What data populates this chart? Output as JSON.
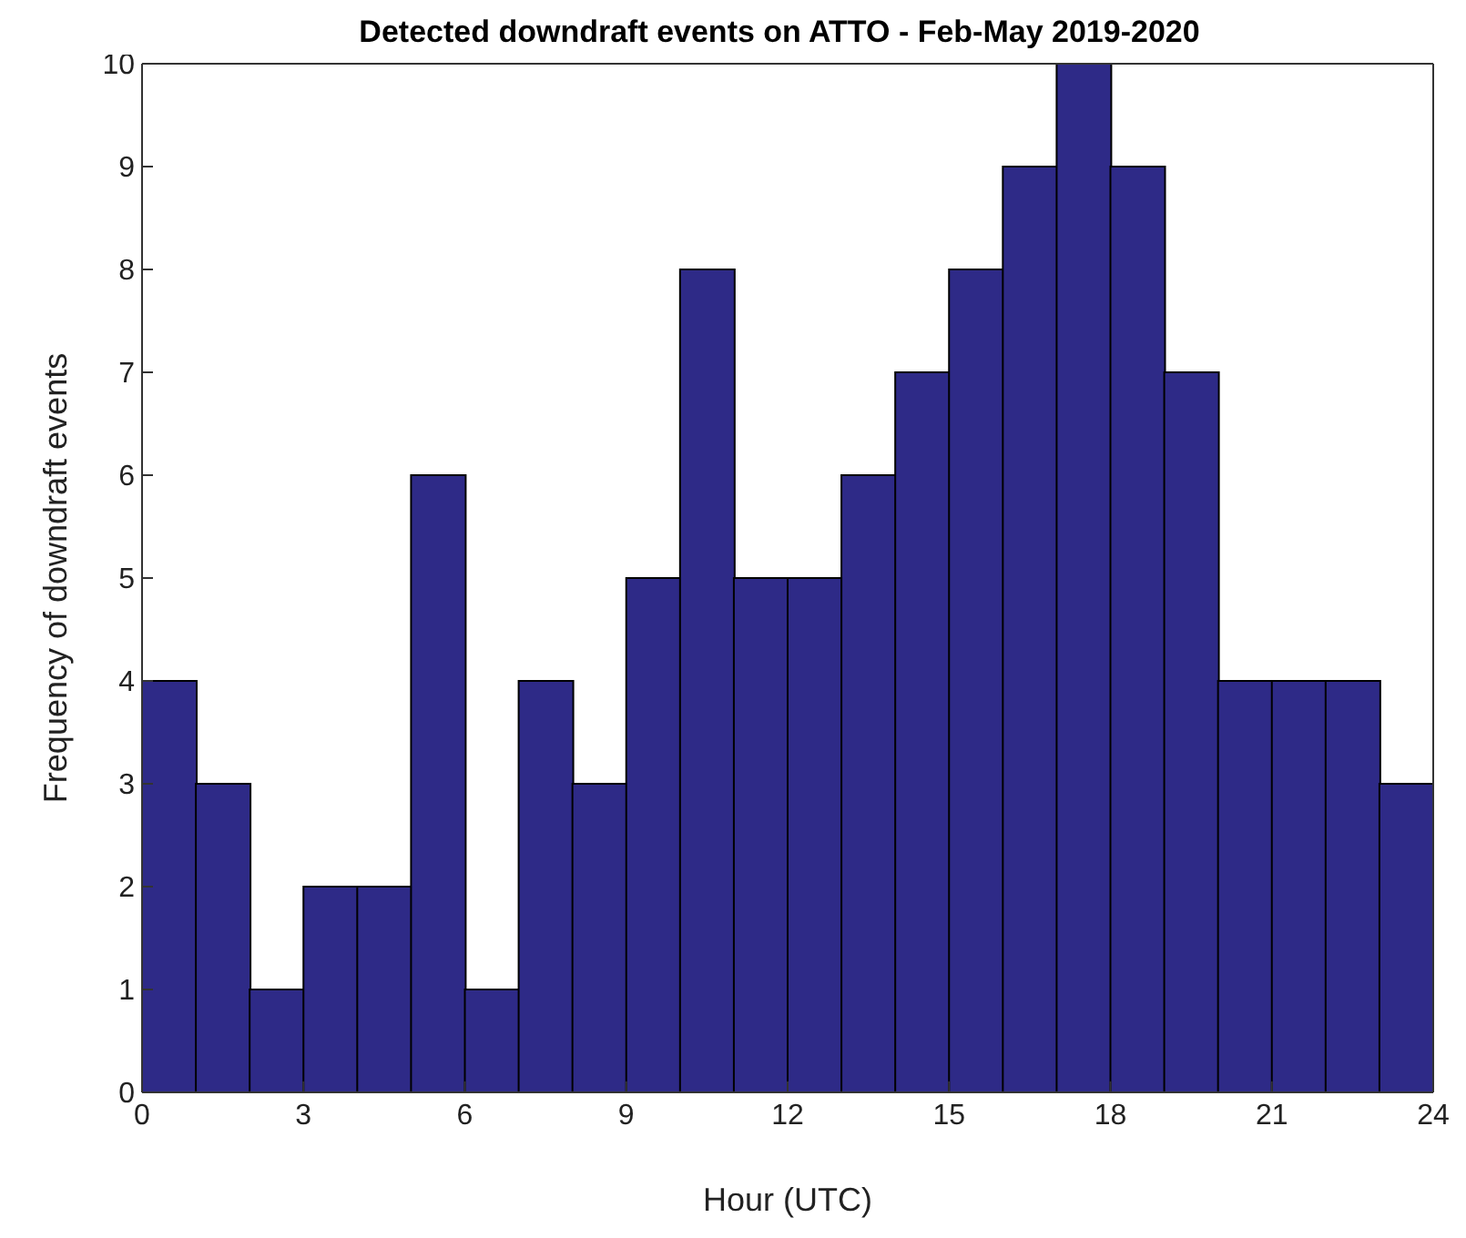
{
  "chart_data": {
    "type": "histogram",
    "title": "Detected downdraft events on ATTO - Feb-May 2019-2020",
    "xlabel": "Hour (UTC)",
    "ylabel": "Frequency of downdraft events",
    "bins": [
      0,
      1,
      2,
      3,
      4,
      5,
      6,
      7,
      8,
      9,
      10,
      11,
      12,
      13,
      14,
      15,
      16,
      17,
      18,
      19,
      20,
      21,
      22,
      23,
      24
    ],
    "values": [
      4,
      3,
      1,
      2,
      2,
      6,
      1,
      4,
      3,
      5,
      8,
      5,
      5,
      6,
      7,
      8,
      9,
      10,
      9,
      7,
      4,
      4,
      4,
      3
    ],
    "color": "#2e2a87",
    "xlim": [
      0,
      24
    ],
    "xticks": [
      0,
      3,
      6,
      9,
      12,
      15,
      18,
      21,
      24
    ],
    "ylim": [
      0,
      10
    ],
    "yticks": [
      0,
      1,
      2,
      3,
      4,
      5,
      6,
      7,
      8,
      9,
      10
    ],
    "grid": false
  }
}
